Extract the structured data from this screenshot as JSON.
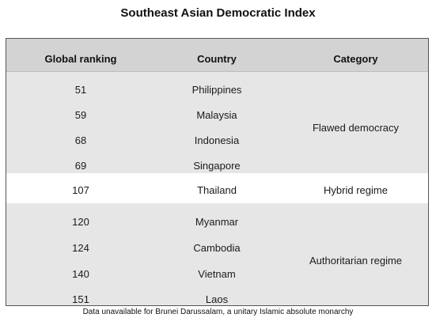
{
  "title": "Southeast Asian Democratic Index",
  "columns": [
    "Global ranking",
    "Country",
    "Category"
  ],
  "groups": [
    {
      "category": "Flawed democracy",
      "rows": [
        {
          "rank": "51",
          "country": "Philippines"
        },
        {
          "rank": "59",
          "country": "Malaysia"
        },
        {
          "rank": "68",
          "country": "Indonesia"
        },
        {
          "rank": "69",
          "country": "Singapore"
        }
      ]
    },
    {
      "category": "Hybrid regime",
      "rows": [
        {
          "rank": "107",
          "country": "Thailand"
        }
      ]
    },
    {
      "category": "Authoritarian regime",
      "rows": [
        {
          "rank": "120",
          "country": "Myanmar"
        },
        {
          "rank": "124",
          "country": "Cambodia"
        },
        {
          "rank": "140",
          "country": "Vietnam"
        },
        {
          "rank": "151",
          "country": "Laos"
        }
      ]
    }
  ],
  "footnote": "Data unavailable for Brunei Darussalam, a unitary Islamic absolute monarchy",
  "colors": {
    "header_bg": "#d3d3d3",
    "band_grey": "#e6e6e6",
    "band_white": "#ffffff",
    "border": "#555555"
  }
}
